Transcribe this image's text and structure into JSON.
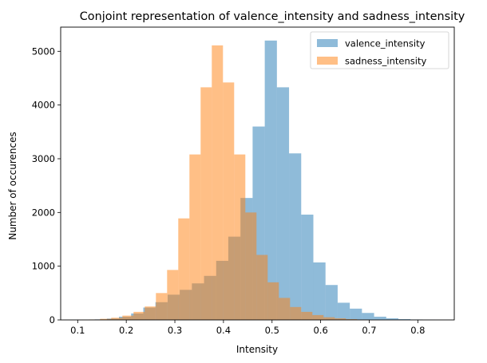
{
  "chart_data": {
    "type": "bar",
    "title": "Conjoint representation of valence_intensity and sadness_intensity",
    "xlabel": "Intensity",
    "ylabel": "Number of occurences",
    "xlim": [
      0.065,
      0.875
    ],
    "ylim": [
      0,
      5450
    ],
    "x_ticks": [
      0.1,
      0.2,
      0.3,
      0.4,
      0.5,
      0.6,
      0.7,
      0.8
    ],
    "y_ticks": [
      0,
      1000,
      2000,
      3000,
      4000,
      5000
    ],
    "legend_position": "top-right",
    "series": [
      {
        "name": "valence_intensity",
        "color": "#1f77b4",
        "opacity": 0.5,
        "bin_edges": [
          0.085,
          0.11,
          0.135,
          0.16,
          0.185,
          0.21,
          0.235,
          0.26,
          0.285,
          0.31,
          0.335,
          0.36,
          0.385,
          0.41,
          0.435,
          0.46,
          0.485,
          0.51,
          0.535,
          0.56,
          0.585,
          0.61,
          0.635,
          0.66,
          0.685,
          0.71,
          0.735,
          0.76,
          0.785,
          0.81,
          0.835,
          0.86
        ],
        "counts": [
          2,
          4,
          10,
          25,
          60,
          120,
          230,
          330,
          470,
          560,
          680,
          820,
          1100,
          1550,
          2270,
          3600,
          5200,
          4330,
          3100,
          1960,
          1070,
          650,
          320,
          210,
          130,
          60,
          30,
          15,
          8,
          3,
          1
        ]
      },
      {
        "name": "sadness_intensity",
        "color": "#ff7f0e",
        "opacity": 0.5,
        "bin_edges": [
          0.1,
          0.123,
          0.146,
          0.169,
          0.192,
          0.215,
          0.238,
          0.261,
          0.284,
          0.307,
          0.33,
          0.353,
          0.376,
          0.399,
          0.422,
          0.445,
          0.468,
          0.491,
          0.514,
          0.537,
          0.56,
          0.583,
          0.606,
          0.629,
          0.652,
          0.675,
          0.698,
          0.721,
          0.744,
          0.767,
          0.79
        ],
        "counts": [
          3,
          8,
          20,
          40,
          80,
          150,
          250,
          500,
          930,
          1890,
          3080,
          4330,
          5110,
          4420,
          3080,
          2000,
          1210,
          700,
          410,
          240,
          150,
          90,
          50,
          30,
          15,
          8,
          4,
          2,
          1,
          1
        ]
      }
    ]
  }
}
